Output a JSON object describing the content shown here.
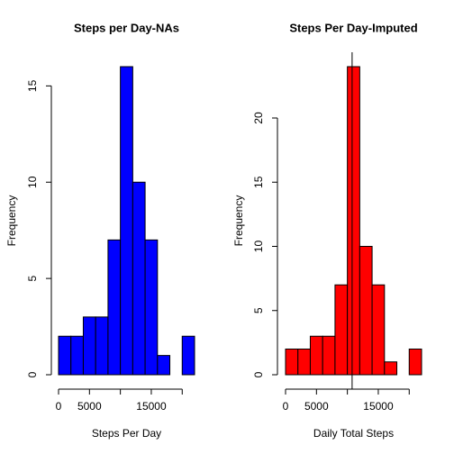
{
  "chart_data": [
    {
      "type": "histogram",
      "title": "Steps per Day-NAs",
      "xlabel": "Steps Per Day",
      "ylabel": "Frequency",
      "bins": [
        0,
        2000,
        4000,
        6000,
        8000,
        10000,
        12000,
        14000,
        16000,
        18000,
        20000,
        22000
      ],
      "values": [
        2,
        2,
        3,
        3,
        7,
        16,
        10,
        7,
        1,
        0,
        2
      ],
      "color": "#0000ff",
      "xlim": [
        0,
        22000
      ],
      "xticks": [
        0,
        5000,
        {
          "value": 10000,
          "label": null
        },
        15000,
        {
          "value": 20000,
          "label": null
        }
      ],
      "ylim": [
        0,
        16
      ],
      "yticks": [
        0,
        5,
        10,
        15
      ]
    },
    {
      "type": "histogram",
      "title": "Steps Per Day-Imputed",
      "xlabel": "Daily Total Steps",
      "ylabel": "Frequency",
      "bins": [
        0,
        2000,
        4000,
        6000,
        8000,
        10000,
        12000,
        14000,
        16000,
        18000,
        20000,
        22000
      ],
      "values": [
        2,
        2,
        3,
        3,
        7,
        24,
        10,
        7,
        1,
        0,
        2
      ],
      "color": "#ff0000",
      "xlim": [
        0,
        22000
      ],
      "xticks": [
        0,
        5000,
        {
          "value": 10000,
          "label": null
        },
        15000,
        {
          "value": 20000,
          "label": null
        }
      ],
      "ylim": [
        0,
        24
      ],
      "yticks": [
        0,
        5,
        10,
        15,
        20
      ],
      "vline": 10766
    }
  ]
}
